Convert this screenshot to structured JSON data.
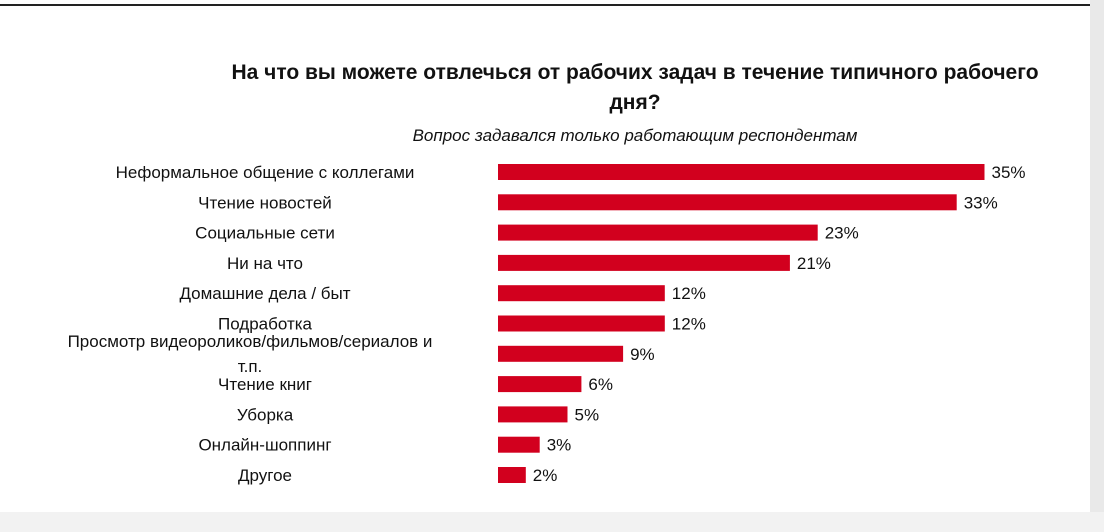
{
  "colors": {
    "bar": "#d2001e",
    "text": "#111111"
  },
  "chart_data": {
    "type": "bar",
    "orientation": "horizontal",
    "title": "На что вы можете отвлечься от рабочих задач в течение типичного рабочего дня?",
    "subtitle": "Вопрос задавался только работающим респондентам",
    "categories": [
      "Неформальное общение с коллегами",
      "Чтение новостей",
      "Социальные сети",
      "Ни на что",
      "Домашние дела / быт",
      "Подработка",
      "Просмотр видеороликов/фильмов/сериалов и т.п.",
      "Чтение книг",
      "Уборка",
      "Онлайн-шоппинг",
      "Другое"
    ],
    "values": [
      35,
      33,
      23,
      21,
      12,
      12,
      9,
      6,
      5,
      3,
      2
    ],
    "value_labels": [
      "35%",
      "33%",
      "23%",
      "21%",
      "12%",
      "12%",
      "9%",
      "6%",
      "5%",
      "3%",
      "2%"
    ],
    "grid": false,
    "legend": "none"
  }
}
